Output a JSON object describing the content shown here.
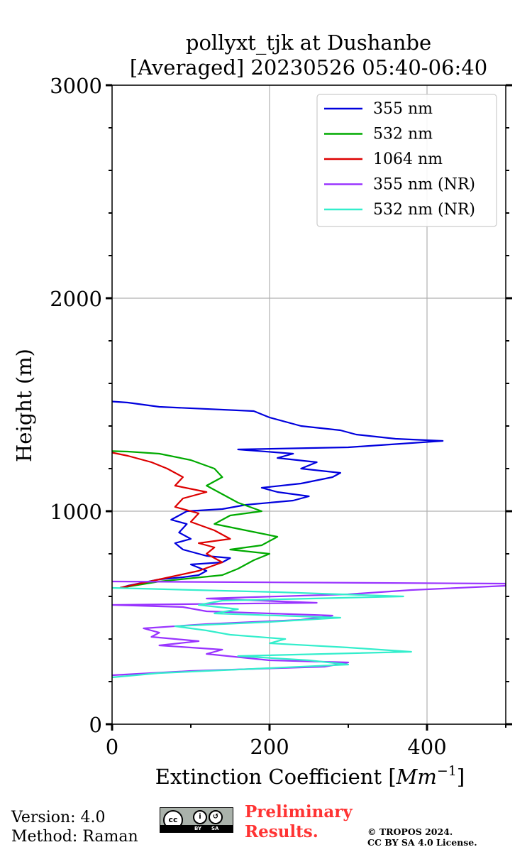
{
  "chart_data": {
    "type": "line",
    "title": "pollyxt_tjk at Dushanbe",
    "subtitle": "[Averaged] 20230526 05:40-06:40",
    "xlabel": "Extinction Coefficient [Mm⁻¹]",
    "ylabel": "Height (m)",
    "xlim": [
      0,
      500
    ],
    "ylim": [
      0,
      3000
    ],
    "xticks": [
      "0",
      "200",
      "400"
    ],
    "yticks": [
      "0",
      "1000",
      "2000",
      "3000"
    ],
    "grid": true,
    "legend_position": "top-right",
    "series": [
      {
        "name": "355 nm",
        "color": "#0000dd",
        "points": [
          [
            10,
            640
          ],
          [
            20,
            650
          ],
          [
            60,
            680
          ],
          [
            90,
            690
          ],
          [
            110,
            700
          ],
          [
            120,
            720
          ],
          [
            100,
            750
          ],
          [
            140,
            760
          ],
          [
            150,
            780
          ],
          [
            120,
            790
          ],
          [
            90,
            820
          ],
          [
            80,
            850
          ],
          [
            100,
            870
          ],
          [
            85,
            900
          ],
          [
            95,
            940
          ],
          [
            75,
            960
          ],
          [
            85,
            980
          ],
          [
            95,
            1000
          ],
          [
            140,
            1010
          ],
          [
            170,
            1030
          ],
          [
            230,
            1050
          ],
          [
            250,
            1070
          ],
          [
            210,
            1090
          ],
          [
            190,
            1110
          ],
          [
            240,
            1130
          ],
          [
            280,
            1160
          ],
          [
            290,
            1180
          ],
          [
            240,
            1200
          ],
          [
            260,
            1230
          ],
          [
            210,
            1250
          ],
          [
            230,
            1270
          ],
          [
            160,
            1290
          ],
          [
            300,
            1300
          ],
          [
            420,
            1330
          ],
          [
            360,
            1340
          ],
          [
            310,
            1360
          ],
          [
            290,
            1380
          ],
          [
            240,
            1400
          ],
          [
            200,
            1440
          ],
          [
            180,
            1470
          ],
          [
            60,
            1490
          ],
          [
            20,
            1510
          ],
          [
            0,
            1515
          ]
        ]
      },
      {
        "name": "532 nm",
        "color": "#00aa00",
        "points": [
          [
            10,
            640
          ],
          [
            60,
            670
          ],
          [
            140,
            700
          ],
          [
            160,
            730
          ],
          [
            180,
            770
          ],
          [
            200,
            800
          ],
          [
            150,
            820
          ],
          [
            190,
            840
          ],
          [
            210,
            880
          ],
          [
            170,
            910
          ],
          [
            130,
            940
          ],
          [
            150,
            980
          ],
          [
            190,
            1000
          ],
          [
            160,
            1040
          ],
          [
            140,
            1080
          ],
          [
            120,
            1120
          ],
          [
            140,
            1160
          ],
          [
            130,
            1200
          ],
          [
            100,
            1240
          ],
          [
            60,
            1270
          ],
          [
            20,
            1280
          ],
          [
            0,
            1282
          ]
        ]
      },
      {
        "name": "1064 nm",
        "color": "#dd0000",
        "points": [
          [
            10,
            640
          ],
          [
            60,
            680
          ],
          [
            110,
            720
          ],
          [
            140,
            760
          ],
          [
            120,
            800
          ],
          [
            130,
            830
          ],
          [
            110,
            850
          ],
          [
            150,
            870
          ],
          [
            130,
            910
          ],
          [
            100,
            950
          ],
          [
            110,
            990
          ],
          [
            80,
            1020
          ],
          [
            90,
            1060
          ],
          [
            120,
            1090
          ],
          [
            80,
            1120
          ],
          [
            90,
            1160
          ],
          [
            70,
            1200
          ],
          [
            50,
            1230
          ],
          [
            20,
            1260
          ],
          [
            0,
            1275
          ]
        ]
      },
      {
        "name": "355 nm (NR)",
        "color": "#9933ff",
        "points": [
          [
            0,
            230
          ],
          [
            100,
            250
          ],
          [
            270,
            270
          ],
          [
            300,
            290
          ],
          [
            200,
            300
          ],
          [
            120,
            330
          ],
          [
            140,
            350
          ],
          [
            60,
            370
          ],
          [
            110,
            390
          ],
          [
            50,
            410
          ],
          [
            60,
            430
          ],
          [
            40,
            450
          ],
          [
            120,
            470
          ],
          [
            240,
            490
          ],
          [
            280,
            510
          ],
          [
            120,
            530
          ],
          [
            90,
            550
          ],
          [
            0,
            560
          ],
          [
            260,
            570
          ],
          [
            120,
            590
          ],
          [
            300,
            610
          ],
          [
            380,
            630
          ],
          [
            500,
            650
          ],
          [
            500,
            660
          ],
          [
            0,
            670
          ]
        ]
      },
      {
        "name": "532 nm (NR)",
        "color": "#33eecc",
        "points": [
          [
            0,
            220
          ],
          [
            60,
            240
          ],
          [
            180,
            260
          ],
          [
            300,
            280
          ],
          [
            250,
            300
          ],
          [
            160,
            320
          ],
          [
            380,
            340
          ],
          [
            300,
            360
          ],
          [
            200,
            380
          ],
          [
            220,
            400
          ],
          [
            150,
            420
          ],
          [
            120,
            440
          ],
          [
            80,
            460
          ],
          [
            200,
            480
          ],
          [
            290,
            500
          ],
          [
            130,
            520
          ],
          [
            160,
            540
          ],
          [
            110,
            560
          ],
          [
            140,
            580
          ],
          [
            370,
            600
          ],
          [
            210,
            620
          ],
          [
            0,
            640
          ]
        ]
      }
    ]
  },
  "footer": {
    "version": "Version: 4.0",
    "method": "Method: Raman",
    "license_badge": "cc-by-sa-badge",
    "preliminary_line1": "Preliminary",
    "preliminary_line2": "Results.",
    "copyright_line1": "© TROPOS 2024.",
    "copyright_line2": "CC BY SA 4.0 License."
  }
}
